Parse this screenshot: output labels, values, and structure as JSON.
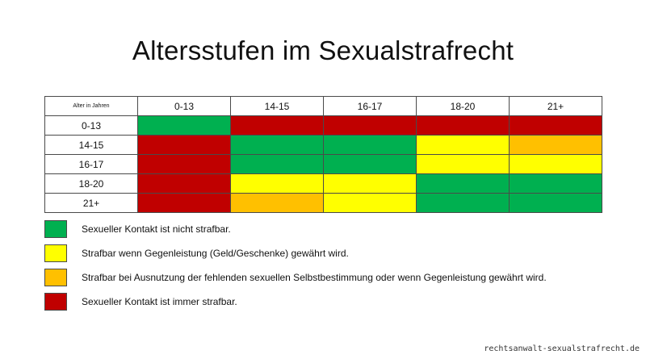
{
  "title": "Altersstufen im Sexualstrafrecht",
  "table": {
    "corner_label": "Alter in Jahren",
    "column_headers": [
      "0-13",
      "14-15",
      "16-17",
      "18-20",
      "21+"
    ],
    "rows": [
      {
        "label": "0-13",
        "cells": [
          "green",
          "red",
          "red",
          "red",
          "red"
        ]
      },
      {
        "label": "14-15",
        "cells": [
          "red",
          "green",
          "green",
          "yellow",
          "orange"
        ]
      },
      {
        "label": "16-17",
        "cells": [
          "red",
          "green",
          "green",
          "yellow",
          "yellow"
        ]
      },
      {
        "label": "18-20",
        "cells": [
          "red",
          "yellow",
          "yellow",
          "green",
          "green"
        ]
      },
      {
        "label": "21+",
        "cells": [
          "red",
          "orange",
          "yellow",
          "green",
          "green"
        ]
      }
    ]
  },
  "colors": {
    "green": "#00b050",
    "yellow": "#ffff00",
    "orange": "#ffc000",
    "red": "#c00000"
  },
  "legend": [
    {
      "color": "green",
      "text": "Sexueller Kontakt ist nicht strafbar."
    },
    {
      "color": "yellow",
      "text": "Strafbar wenn Gegenleistung (Geld/Geschenke) gewährt wird."
    },
    {
      "color": "orange",
      "text": "Strafbar bei Ausnutzung der fehlenden sexuellen Selbstbestimmung oder wenn Gegenleistung gewährt wird."
    },
    {
      "color": "red",
      "text": "Sexueller Kontakt ist immer strafbar."
    }
  ],
  "watermark": "rechtsanwalt-sexualstrafrecht.de"
}
